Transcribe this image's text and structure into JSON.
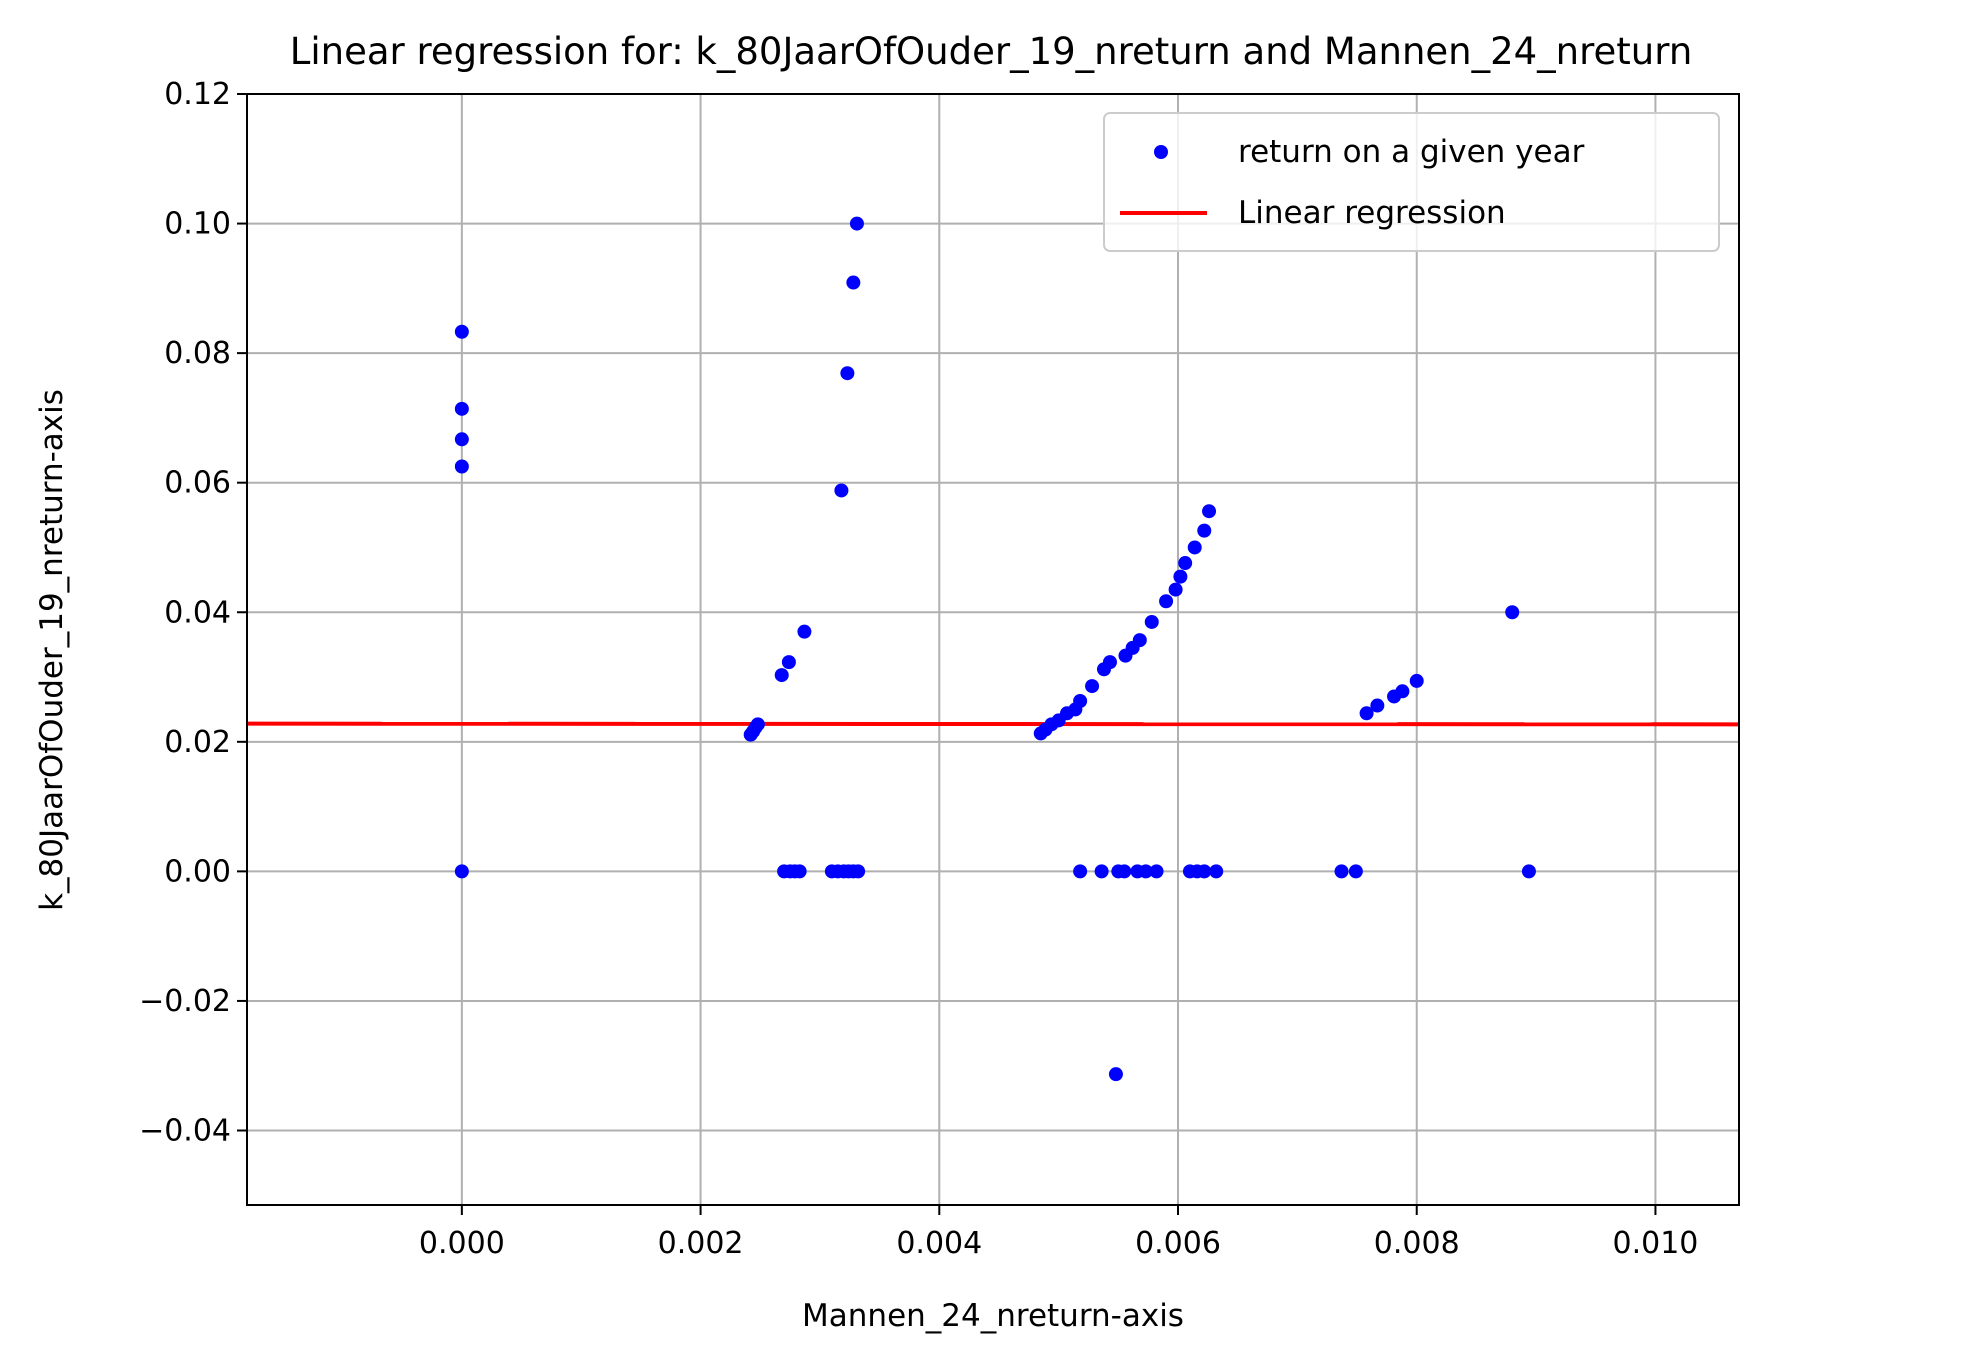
{
  "chart_data": {
    "type": "scatter",
    "title": "Linear regression for: k_80JaarOfOuder_19_nreturn and Mannen_24_nreturn",
    "xlabel": "Mannen_24_nreturn-axis",
    "ylabel": "k_80JaarOfOuder_19_nreturn-axis",
    "xlim": [
      -0.0018,
      0.0107
    ],
    "ylim": [
      -0.0515,
      0.12
    ],
    "x_ticks": [
      0.0,
      0.002,
      0.004,
      0.006,
      0.008,
      0.01
    ],
    "x_tick_labels": [
      "0.000",
      "0.002",
      "0.004",
      "0.006",
      "0.008",
      "0.010"
    ],
    "y_ticks": [
      -0.04,
      -0.02,
      0.0,
      0.02,
      0.04,
      0.06,
      0.08,
      0.1,
      0.12
    ],
    "y_tick_labels": [
      "−0.04",
      "−0.02",
      "0.00",
      "0.02",
      "0.04",
      "0.06",
      "0.08",
      "0.10",
      "0.12"
    ],
    "grid": true,
    "legend_position": "top-right",
    "legend": [
      {
        "label": "return on a given year",
        "kind": "marker",
        "color": "#0000ff"
      },
      {
        "label": "Linear regression",
        "kind": "line",
        "color": "#ff0000"
      }
    ],
    "series": [
      {
        "name": "return on a given year",
        "color": "#0000ff",
        "points": [
          [
            0.0,
            0.0833
          ],
          [
            0.0,
            0.0714
          ],
          [
            0.0,
            0.0667
          ],
          [
            0.0,
            0.0625
          ],
          [
            0.0,
            0.0
          ],
          [
            0.00242,
            0.0211
          ],
          [
            0.00244,
            0.0216
          ],
          [
            0.00246,
            0.0222
          ],
          [
            0.00248,
            0.0227
          ],
          [
            0.00268,
            0.0303
          ],
          [
            0.00274,
            0.0323
          ],
          [
            0.00287,
            0.037
          ],
          [
            0.00318,
            0.0588
          ],
          [
            0.00323,
            0.0769
          ],
          [
            0.00328,
            0.0909
          ],
          [
            0.00331,
            0.1
          ],
          [
            0.0027,
            0.0
          ],
          [
            0.00275,
            0.0
          ],
          [
            0.00279,
            0.0
          ],
          [
            0.00283,
            0.0
          ],
          [
            0.0031,
            0.0
          ],
          [
            0.00315,
            0.0
          ],
          [
            0.0032,
            0.0
          ],
          [
            0.00324,
            0.0
          ],
          [
            0.00328,
            0.0
          ],
          [
            0.00332,
            0.0
          ],
          [
            0.00485,
            0.0213
          ],
          [
            0.00489,
            0.0219
          ],
          [
            0.00494,
            0.0227
          ],
          [
            0.005,
            0.0233
          ],
          [
            0.00507,
            0.0244
          ],
          [
            0.00514,
            0.025
          ],
          [
            0.00518,
            0.0263
          ],
          [
            0.00528,
            0.0286
          ],
          [
            0.00538,
            0.0312
          ],
          [
            0.00543,
            0.0323
          ],
          [
            0.00556,
            0.0333
          ],
          [
            0.00562,
            0.0345
          ],
          [
            0.00568,
            0.0357
          ],
          [
            0.00578,
            0.0385
          ],
          [
            0.0059,
            0.0417
          ],
          [
            0.00598,
            0.0435
          ],
          [
            0.00602,
            0.0455
          ],
          [
            0.00606,
            0.0476
          ],
          [
            0.00614,
            0.05
          ],
          [
            0.00622,
            0.0526
          ],
          [
            0.00626,
            0.0556
          ],
          [
            0.00518,
            0.0
          ],
          [
            0.00536,
            0.0
          ],
          [
            0.0055,
            0.0
          ],
          [
            0.00555,
            0.0
          ],
          [
            0.00566,
            0.0
          ],
          [
            0.00573,
            0.0
          ],
          [
            0.00582,
            0.0
          ],
          [
            0.0061,
            0.0
          ],
          [
            0.00616,
            0.0
          ],
          [
            0.00622,
            0.0
          ],
          [
            0.00632,
            0.0
          ],
          [
            0.00548,
            -0.0313
          ],
          [
            0.00758,
            0.0244
          ],
          [
            0.00767,
            0.0256
          ],
          [
            0.00781,
            0.027
          ],
          [
            0.00788,
            0.0278
          ],
          [
            0.008,
            0.0294
          ],
          [
            0.00737,
            0.0
          ],
          [
            0.00749,
            0.0
          ],
          [
            0.0088,
            0.04
          ],
          [
            0.00894,
            0.0
          ]
        ]
      },
      {
        "name": "Linear regression",
        "color": "#ff0000",
        "line": [
          [
            -0.0018,
            0.0228
          ],
          [
            0.0107,
            0.0227
          ]
        ]
      }
    ]
  }
}
